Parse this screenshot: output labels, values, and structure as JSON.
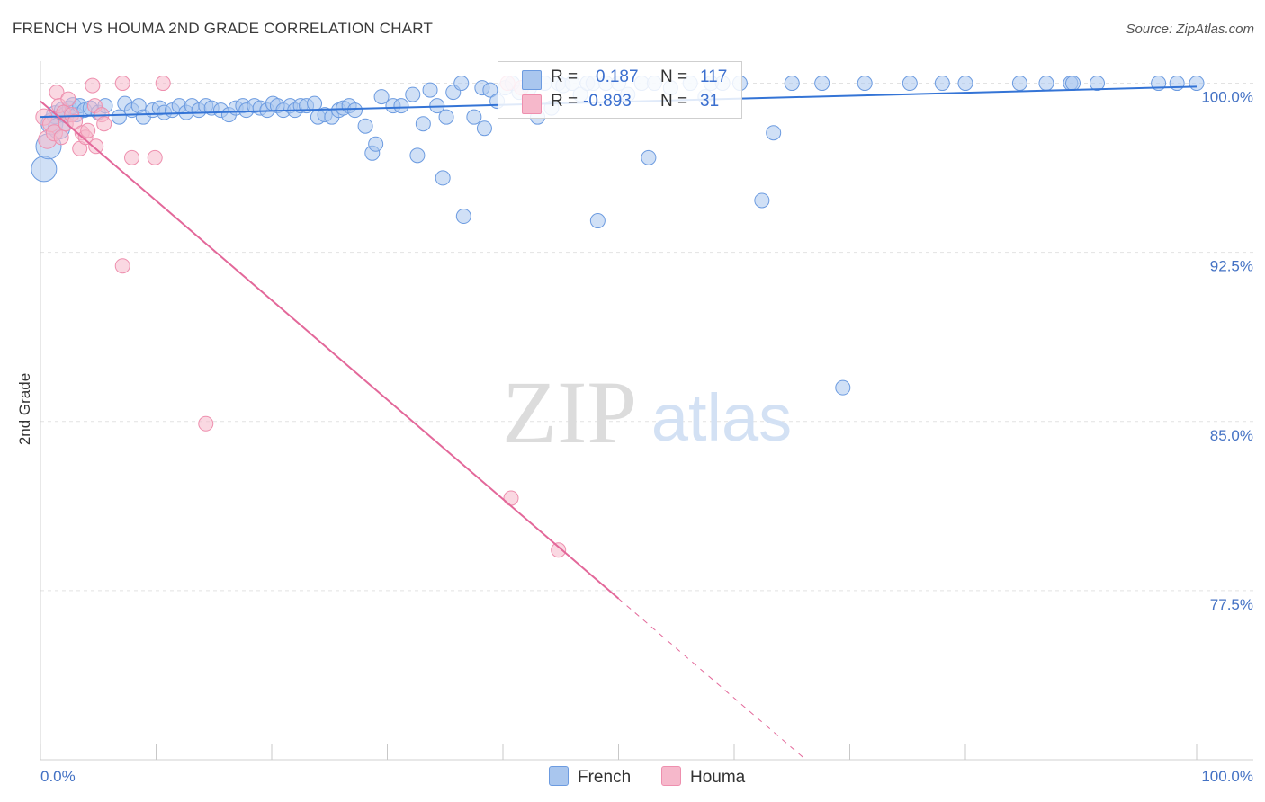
{
  "title": "FRENCH VS HOUMA 2ND GRADE CORRELATION CHART",
  "source": "Source: ZipAtlas.com",
  "watermark": {
    "zip": "ZIP",
    "atlas": "atlas"
  },
  "legend": {
    "french": {
      "r_label": "R =",
      "r_value": "0.187",
      "n_label": "N =",
      "n_value": "117"
    },
    "houma": {
      "r_label": "R =",
      "r_value": "-0.893",
      "n_label": "N =",
      "n_value": "31"
    }
  },
  "bottom_legend": {
    "french": "French",
    "houma": "Houma"
  },
  "colors": {
    "french_fill": "#a9c6ee",
    "french_stroke": "#6c9be0",
    "french_line": "#3474d6",
    "houma_fill": "#f6b8cb",
    "houma_stroke": "#ee8fae",
    "houma_line": "#e3689a",
    "grid": "#e2e2e2",
    "axis_text": "#4472c4"
  },
  "chart_data": {
    "type": "scatter",
    "title": "FRENCH VS HOUMA 2ND GRADE CORRELATION CHART",
    "xlabel": "",
    "ylabel": "2nd Grade",
    "xlim": [
      0,
      100
    ],
    "ylim": [
      70.0,
      100.7
    ],
    "x_tick_labels": [
      {
        "value": 0,
        "label": "0.0%"
      },
      {
        "value": 100,
        "label": "100.0%"
      }
    ],
    "y_ticks": [
      {
        "value": 100.0,
        "label": "100.0%"
      },
      {
        "value": 92.5,
        "label": "92.5%"
      },
      {
        "value": 85.0,
        "label": "85.0%"
      },
      {
        "value": 77.5,
        "label": "77.5%"
      }
    ],
    "series": [
      {
        "name": "French",
        "trend": {
          "x": [
            0,
            100
          ],
          "y": [
            98.5,
            99.85
          ],
          "solid_to_x": 100
        },
        "points": [
          [
            0.3,
            96.2,
            14
          ],
          [
            0.7,
            97.2,
            14
          ],
          [
            1.0,
            98.2,
            12
          ],
          [
            1.3,
            98.6,
            10
          ],
          [
            1.6,
            98.0,
            12
          ],
          [
            1.9,
            98.8,
            9
          ],
          [
            2.2,
            98.6,
            9
          ],
          [
            2.5,
            98.9,
            8
          ],
          [
            2.8,
            99.0,
            9
          ],
          [
            3.1,
            98.6,
            8
          ],
          [
            3.4,
            99.0,
            8
          ],
          [
            3.8,
            98.8,
            8
          ],
          [
            4.3,
            98.9,
            8
          ],
          [
            5.0,
            98.7,
            8
          ],
          [
            5.6,
            99.0,
            8
          ],
          [
            6.8,
            98.5,
            8
          ],
          [
            7.3,
            99.1,
            8
          ],
          [
            7.9,
            98.8,
            8
          ],
          [
            8.5,
            99.0,
            8
          ],
          [
            8.9,
            98.5,
            8
          ],
          [
            9.7,
            98.8,
            8
          ],
          [
            10.3,
            98.9,
            8
          ],
          [
            10.7,
            98.7,
            8
          ],
          [
            11.4,
            98.8,
            8
          ],
          [
            12.0,
            99.0,
            8
          ],
          [
            12.6,
            98.7,
            8
          ],
          [
            13.1,
            99.0,
            8
          ],
          [
            13.7,
            98.8,
            8
          ],
          [
            14.3,
            99.0,
            8
          ],
          [
            14.8,
            98.9,
            8
          ],
          [
            15.6,
            98.8,
            8
          ],
          [
            16.3,
            98.6,
            8
          ],
          [
            16.9,
            98.9,
            8
          ],
          [
            17.5,
            99.0,
            8
          ],
          [
            17.8,
            98.8,
            8
          ],
          [
            18.5,
            99.0,
            8
          ],
          [
            19.0,
            98.9,
            8
          ],
          [
            19.6,
            98.8,
            8
          ],
          [
            20.1,
            99.1,
            8
          ],
          [
            20.5,
            99.0,
            8
          ],
          [
            21.0,
            98.8,
            8
          ],
          [
            21.6,
            99.0,
            8
          ],
          [
            22.0,
            98.8,
            8
          ],
          [
            22.5,
            99.0,
            8
          ],
          [
            23.0,
            99.0,
            8
          ],
          [
            23.7,
            99.1,
            8
          ],
          [
            24.0,
            98.5,
            8
          ],
          [
            24.6,
            98.6,
            8
          ],
          [
            25.2,
            98.5,
            8
          ],
          [
            25.8,
            98.8,
            8
          ],
          [
            26.2,
            98.9,
            8
          ],
          [
            26.7,
            99.0,
            8
          ],
          [
            27.2,
            98.8,
            8
          ],
          [
            28.1,
            98.1,
            8
          ],
          [
            28.7,
            96.9,
            8
          ],
          [
            29.0,
            97.3,
            8
          ],
          [
            29.5,
            99.4,
            8
          ],
          [
            30.5,
            99.0,
            8
          ],
          [
            31.2,
            99.0,
            8
          ],
          [
            32.2,
            99.5,
            8
          ],
          [
            32.6,
            96.8,
            8
          ],
          [
            33.1,
            98.2,
            8
          ],
          [
            33.7,
            99.7,
            8
          ],
          [
            34.3,
            99.0,
            8
          ],
          [
            34.8,
            95.8,
            8
          ],
          [
            35.1,
            98.5,
            8
          ],
          [
            35.7,
            99.6,
            8
          ],
          [
            36.4,
            100.0,
            8
          ],
          [
            36.6,
            94.1,
            8
          ],
          [
            37.5,
            98.5,
            8
          ],
          [
            38.2,
            99.8,
            8
          ],
          [
            38.4,
            98.0,
            8
          ],
          [
            38.9,
            99.7,
            8
          ],
          [
            39.5,
            99.2,
            8
          ],
          [
            40.2,
            99.8,
            8
          ],
          [
            40.8,
            100.0,
            8
          ],
          [
            41.4,
            99.6,
            8
          ],
          [
            42.3,
            99.8,
            8
          ],
          [
            43.0,
            98.5,
            8
          ],
          [
            43.6,
            100.0,
            8
          ],
          [
            44.2,
            98.9,
            8
          ],
          [
            44.8,
            100.0,
            8
          ],
          [
            45.2,
            99.9,
            8
          ],
          [
            46.0,
            100.0,
            8
          ],
          [
            46.7,
            99.5,
            8
          ],
          [
            47.3,
            100.0,
            8
          ],
          [
            47.8,
            100.0,
            8
          ],
          [
            48.2,
            93.9,
            8
          ],
          [
            48.9,
            100.0,
            8
          ],
          [
            50.0,
            100.0,
            8
          ],
          [
            50.8,
            99.5,
            8
          ],
          [
            52.0,
            100.0,
            8
          ],
          [
            52.6,
            96.7,
            8
          ],
          [
            53.1,
            100.0,
            8
          ],
          [
            54.5,
            99.8,
            8
          ],
          [
            56.2,
            100.0,
            8
          ],
          [
            57.5,
            99.4,
            8
          ],
          [
            58.0,
            100.0,
            8
          ],
          [
            59.0,
            100.0,
            8
          ],
          [
            60.5,
            100.0,
            8
          ],
          [
            62.4,
            94.8,
            8
          ],
          [
            63.4,
            97.8,
            8
          ],
          [
            65.0,
            100.0,
            8
          ],
          [
            67.6,
            100.0,
            8
          ],
          [
            69.4,
            86.5,
            8
          ],
          [
            71.3,
            100.0,
            8
          ],
          [
            75.2,
            100.0,
            8
          ],
          [
            78.0,
            100.0,
            8
          ],
          [
            80.0,
            100.0,
            8
          ],
          [
            84.7,
            100.0,
            8
          ],
          [
            87.0,
            100.0,
            8
          ],
          [
            89.1,
            100.0,
            8
          ],
          [
            89.3,
            100.0,
            8
          ],
          [
            91.4,
            100.0,
            8
          ],
          [
            96.7,
            100.0,
            8
          ],
          [
            98.3,
            100.0,
            8
          ],
          [
            100.0,
            100.0,
            8
          ]
        ]
      },
      {
        "name": "Houma",
        "trend": {
          "x": [
            0,
            66.2
          ],
          "y": [
            99.2,
            70.0
          ],
          "solid_to_x": 50.0
        },
        "points": [
          [
            0.3,
            98.5,
            9
          ],
          [
            0.6,
            97.5,
            10
          ],
          [
            0.9,
            98.2,
            9
          ],
          [
            1.2,
            97.8,
            9
          ],
          [
            1.4,
            99.6,
            8
          ],
          [
            1.6,
            99.0,
            8
          ],
          [
            1.8,
            97.6,
            8
          ],
          [
            2.0,
            98.7,
            8
          ],
          [
            2.2,
            98.2,
            8
          ],
          [
            2.4,
            99.3,
            8
          ],
          [
            2.7,
            98.6,
            8
          ],
          [
            3.0,
            98.3,
            8
          ],
          [
            3.4,
            97.1,
            8
          ],
          [
            3.6,
            97.8,
            8
          ],
          [
            3.9,
            97.6,
            8
          ],
          [
            4.1,
            97.9,
            8
          ],
          [
            4.5,
            99.9,
            8
          ],
          [
            4.7,
            99.0,
            8
          ],
          [
            4.8,
            97.2,
            8
          ],
          [
            5.3,
            98.6,
            8
          ],
          [
            5.5,
            98.2,
            8
          ],
          [
            7.1,
            100.0,
            8
          ],
          [
            7.1,
            91.9,
            8
          ],
          [
            7.9,
            96.7,
            8
          ],
          [
            9.9,
            96.7,
            8
          ],
          [
            10.6,
            100.0,
            8
          ],
          [
            14.3,
            84.9,
            8
          ],
          [
            40.4,
            100.0,
            8
          ],
          [
            41.6,
            99.8,
            8
          ],
          [
            40.7,
            81.6,
            8
          ],
          [
            44.8,
            79.3,
            8
          ]
        ]
      }
    ]
  }
}
